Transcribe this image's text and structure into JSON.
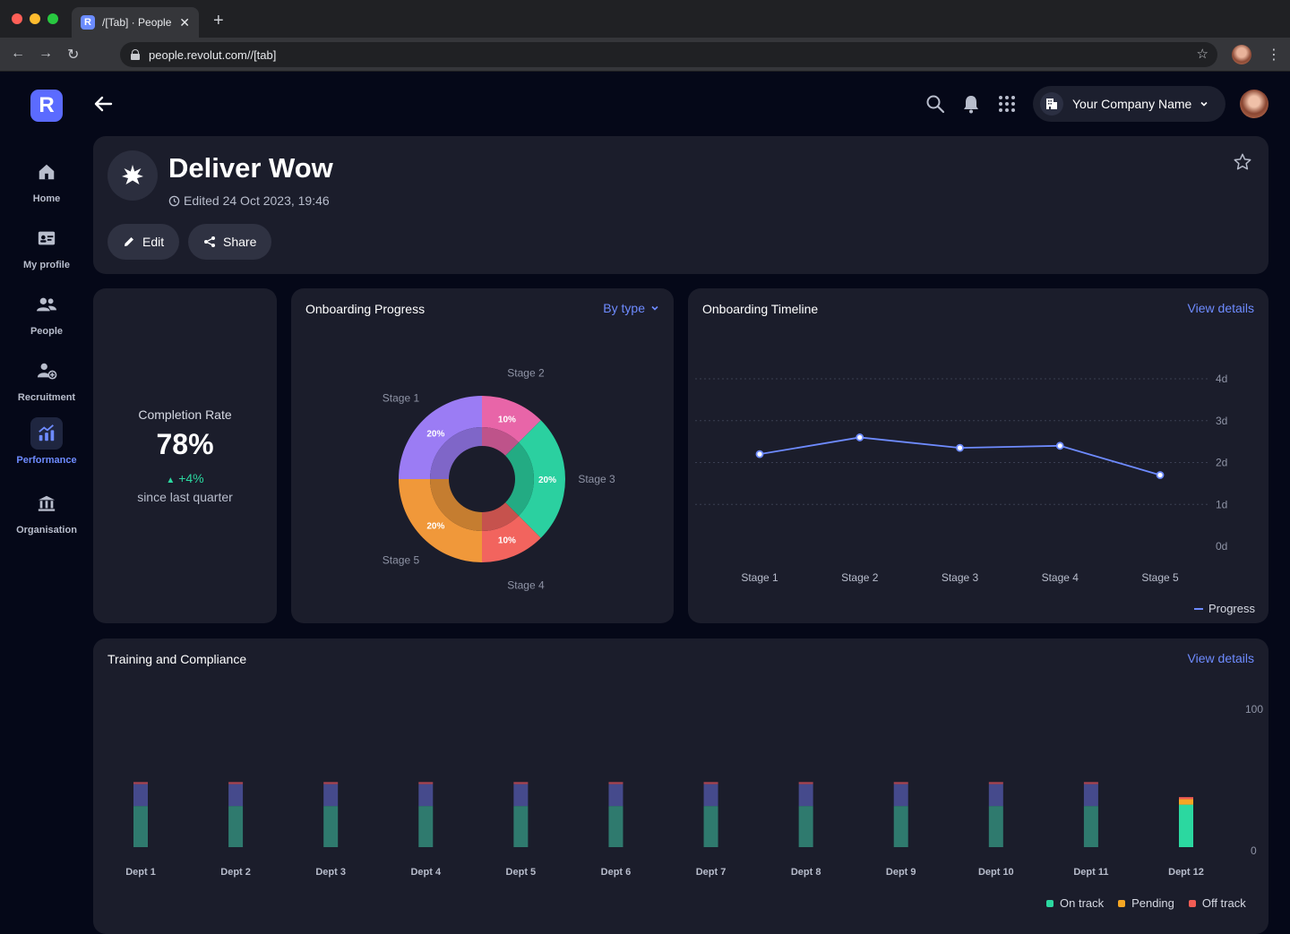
{
  "browser": {
    "tab_title": "/[Tab] · People",
    "tab_favicon": "R",
    "url": "people.revolut.com//[tab]"
  },
  "sidebar": {
    "logo": "R",
    "items": [
      {
        "label": "Home",
        "icon": "home-icon"
      },
      {
        "label": "My profile",
        "icon": "id-card-icon"
      },
      {
        "label": "People",
        "icon": "people-icon"
      },
      {
        "label": "Recruitment",
        "icon": "add-user-icon"
      },
      {
        "label": "Performance",
        "icon": "chart-icon",
        "active": true
      },
      {
        "label": "Organisation",
        "icon": "bank-icon"
      }
    ]
  },
  "header": {
    "company_name": "Your Company Name"
  },
  "page": {
    "title": "Deliver Wow",
    "edited": "Edited 24 Oct 2023, 19:46",
    "edit_label": "Edit",
    "share_label": "Share"
  },
  "completion": {
    "label": "Completion Rate",
    "value": "78%",
    "change": "+4%",
    "subtitle": "since last quarter"
  },
  "onboarding_progress": {
    "title": "Onboarding Progress",
    "filter": "By type"
  },
  "onboarding_timeline": {
    "title": "Onboarding Timeline",
    "link": "View details",
    "legend": "Progress"
  },
  "training": {
    "title": "Training and Compliance",
    "link": "View details",
    "legend": [
      "On track",
      "Pending",
      "Off track"
    ]
  },
  "colors": {
    "accent": "#6e8bff",
    "on_track": "#2bd8a0",
    "pending": "#f5a623",
    "off_track": "#f25c54"
  },
  "chart_data": [
    {
      "type": "pie",
      "title": "Onboarding Progress",
      "categories": [
        "Stage 1",
        "Stage 2",
        "Stage 3",
        "Stage 4",
        "Stage 5"
      ],
      "values": [
        20,
        10,
        20,
        10,
        20
      ],
      "labels": [
        "20%",
        "10%",
        "20%",
        "10%",
        "20%"
      ],
      "colors": [
        "#9b7cf4",
        "#e865a8",
        "#2bd0a0",
        "#f2645e",
        "#f0983a"
      ]
    },
    {
      "type": "line",
      "title": "Onboarding Timeline",
      "categories": [
        "Stage 1",
        "Stage 2",
        "Stage 3",
        "Stage 4",
        "Stage 5"
      ],
      "series": [
        {
          "name": "Progress",
          "values": [
            2.2,
            2.6,
            2.35,
            2.4,
            1.7
          ]
        }
      ],
      "yticks": [
        "0d",
        "1d",
        "2d",
        "3d",
        "4d"
      ],
      "ylim": [
        0,
        4
      ]
    },
    {
      "type": "bar",
      "title": "Training and Compliance",
      "categories": [
        "Dept 1",
        "Dept 2",
        "Dept 3",
        "Dept 4",
        "Dept 5",
        "Dept 6",
        "Dept 7",
        "Dept 8",
        "Dept 9",
        "Dept 10",
        "Dept 11",
        "Dept 12"
      ],
      "series": [
        {
          "name": "On track",
          "values": [
            30,
            30,
            30,
            30,
            30,
            30,
            30,
            30,
            30,
            30,
            30,
            31
          ]
        },
        {
          "name": "Pending",
          "values": [
            16,
            16,
            16,
            16,
            16,
            16,
            16,
            16,
            16,
            16,
            16,
            4
          ]
        },
        {
          "name": "Off track",
          "values": [
            1.5,
            1.5,
            1.5,
            1.5,
            1.5,
            1.5,
            1.5,
            1.5,
            1.5,
            1.5,
            1.5,
            1.5
          ]
        }
      ],
      "yticks": [
        "0",
        "100"
      ],
      "ylim": [
        0,
        100
      ]
    }
  ]
}
